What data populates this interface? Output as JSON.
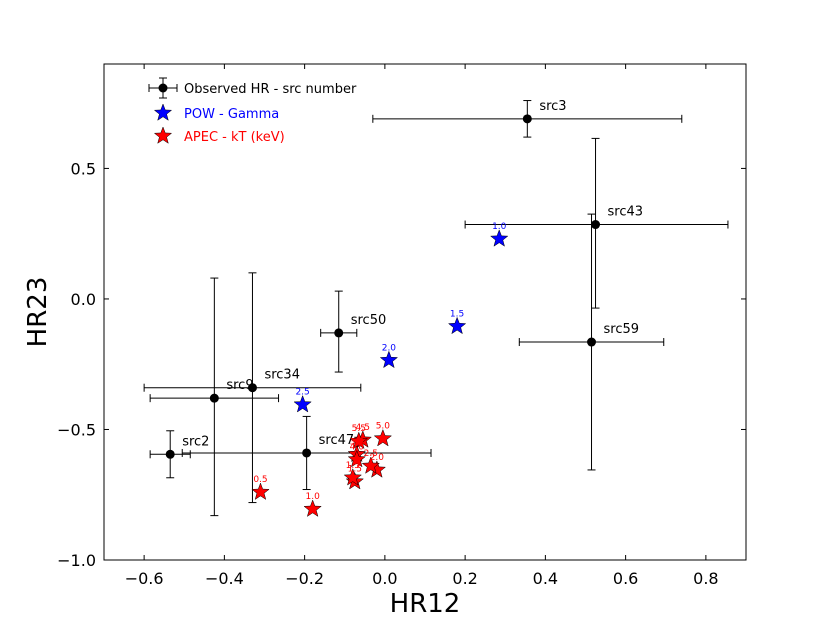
{
  "chart_data": {
    "type": "scatter",
    "title": "",
    "xlabel": "HR12",
    "ylabel": "HR23",
    "xlim": [
      -0.7,
      0.9
    ],
    "ylim": [
      -1.0,
      0.9
    ],
    "xticks": [
      -0.6,
      -0.4,
      -0.2,
      0.0,
      0.2,
      0.4,
      0.6,
      0.8
    ],
    "xtick_labels": [
      "−0.6",
      "−0.4",
      "−0.2",
      "0.0",
      "0.2",
      "0.4",
      "0.6",
      "0.8"
    ],
    "yticks": [
      -1.0,
      -0.5,
      0.0,
      0.5
    ],
    "ytick_labels": [
      "−1.0",
      "−0.5",
      "0.0",
      "0.5"
    ],
    "grid": false,
    "legend": {
      "placement": "top-left",
      "entries": [
        {
          "label": "Observed HR - src number",
          "color": "#000000",
          "marker": "circle-errorbar"
        },
        {
          "label": "POW - Gamma",
          "color": "#0000ff",
          "marker": "star"
        },
        {
          "label": "APEC - kT (keV)",
          "color": "#ff0000",
          "marker": "star"
        }
      ]
    },
    "series": [
      {
        "name": "Observed HR - src number",
        "color": "#000000",
        "points": [
          {
            "label": "src3",
            "x": 0.355,
            "y": 0.69,
            "xerr": [
              0.385,
              0.385
            ],
            "yerr": [
              0.07,
              0.07
            ]
          },
          {
            "label": "src43",
            "x": 0.525,
            "y": 0.285,
            "xerr": [
              0.325,
              0.33
            ],
            "yerr": [
              0.32,
              0.33
            ]
          },
          {
            "label": "src59",
            "x": 0.515,
            "y": -0.165,
            "xerr": [
              0.18,
              0.18
            ],
            "yerr": [
              0.49,
              0.49
            ]
          },
          {
            "label": "src50",
            "x": -0.115,
            "y": -0.13,
            "xerr": [
              0.045,
              0.045
            ],
            "yerr": [
              0.15,
              0.16
            ]
          },
          {
            "label": "src34",
            "x": -0.33,
            "y": -0.34,
            "xerr": [
              0.27,
              0.27
            ],
            "yerr": [
              0.44,
              0.44
            ]
          },
          {
            "label": "src9",
            "x": -0.425,
            "y": -0.38,
            "xerr": [
              0.16,
              0.16
            ],
            "yerr": [
              0.45,
              0.46
            ]
          },
          {
            "label": "src2",
            "x": -0.535,
            "y": -0.595,
            "xerr": [
              0.05,
              0.05
            ],
            "yerr": [
              0.09,
              0.09
            ]
          },
          {
            "label": "src47",
            "x": -0.195,
            "y": -0.59,
            "xerr": [
              0.31,
              0.31
            ],
            "yerr": [
              0.14,
              0.14
            ]
          }
        ]
      },
      {
        "name": "POW - Gamma",
        "color": "#0000ff",
        "points": [
          {
            "label": "1.0",
            "x": 0.285,
            "y": 0.23
          },
          {
            "label": "1.5",
            "x": 0.18,
            "y": -0.105
          },
          {
            "label": "2.0",
            "x": 0.01,
            "y": -0.235
          },
          {
            "label": "2.5",
            "x": -0.205,
            "y": -0.405
          }
        ]
      },
      {
        "name": "APEC - kT (keV)",
        "color": "#ff0000",
        "points": [
          {
            "label": "0.5",
            "x": -0.31,
            "y": -0.74
          },
          {
            "label": "1.0",
            "x": -0.18,
            "y": -0.805
          },
          {
            "label": "1.5",
            "x": -0.075,
            "y": -0.7
          },
          {
            "label": "2.0",
            "x": -0.02,
            "y": -0.655
          },
          {
            "label": "2.5",
            "x": -0.035,
            "y": -0.64
          },
          {
            "label": "3.5",
            "x": -0.07,
            "y": -0.595
          },
          {
            "label": "4.0",
            "x": -0.07,
            "y": -0.615
          },
          {
            "label": "4.5",
            "x": -0.055,
            "y": -0.54
          },
          {
            "label": "5.0",
            "x": -0.005,
            "y": -0.535
          },
          {
            "label": "5.5",
            "x": -0.065,
            "y": -0.545
          },
          {
            "label": "1.5",
            "x": -0.08,
            "y": -0.685
          }
        ]
      }
    ]
  }
}
